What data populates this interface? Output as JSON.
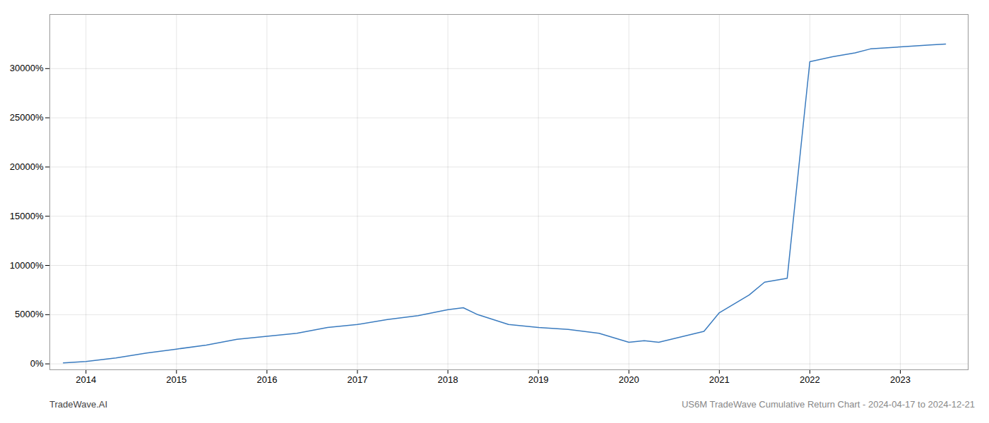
{
  "chart_data": {
    "type": "line",
    "x": [
      2013.75,
      2014.0,
      2014.33,
      2014.67,
      2015.0,
      2015.33,
      2015.67,
      2016.0,
      2016.33,
      2016.67,
      2017.0,
      2017.33,
      2017.67,
      2018.0,
      2018.17,
      2018.33,
      2018.67,
      2019.0,
      2019.33,
      2019.67,
      2020.0,
      2020.17,
      2020.33,
      2020.83,
      2021.0,
      2021.33,
      2021.5,
      2021.75,
      2022.0,
      2022.25,
      2022.5,
      2022.67,
      2023.0,
      2023.33,
      2023.5
    ],
    "values": [
      100,
      250,
      600,
      1100,
      1500,
      1900,
      2500,
      2800,
      3100,
      3700,
      4000,
      4500,
      4900,
      5500,
      5700,
      5000,
      4000,
      3700,
      3500,
      3100,
      2200,
      2350,
      2200,
      3300,
      5200,
      7000,
      8300,
      8700,
      30700,
      31200,
      31600,
      32000,
      32200,
      32400,
      32500
    ],
    "color": "#3a7bbf",
    "xlim": [
      2013.6,
      2023.75
    ],
    "ylim": [
      -600,
      35500
    ],
    "xticks": [
      2014,
      2015,
      2016,
      2017,
      2018,
      2019,
      2020,
      2021,
      2022,
      2023
    ],
    "yticks": [
      {
        "value": 0,
        "label": "0%"
      },
      {
        "value": 5000,
        "label": "5000%"
      },
      {
        "value": 10000,
        "label": "10000%"
      },
      {
        "value": 15000,
        "label": "15000%"
      },
      {
        "value": 20000,
        "label": "20000%"
      },
      {
        "value": 25000,
        "label": "25000%"
      },
      {
        "value": 30000,
        "label": "30000%"
      }
    ],
    "grid": true,
    "annotations": [
      "TradeWave.AI",
      "US6M TradeWave Cumulative Return Chart - 2024-04-17 to 2024-12-21"
    ]
  }
}
